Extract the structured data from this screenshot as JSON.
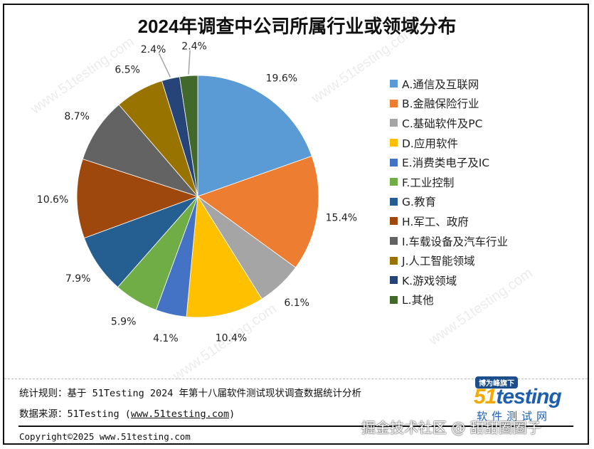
{
  "chart_data": {
    "type": "pie",
    "title": "2024年调查中公司所属行业或领域分布",
    "unit": "%",
    "start_angle": "12 o'clock",
    "direction": "clockwise",
    "legend_position": "right",
    "slices": [
      {
        "label": "A.通信及互联网",
        "value": 19.6,
        "display": "19.6%",
        "color": "#5B9BD5"
      },
      {
        "label": "B.金融保险行业",
        "value": 15.4,
        "display": "15.4%",
        "color": "#ED7D31"
      },
      {
        "label": "C.基础软件及PC",
        "value": 6.1,
        "display": "6.1%",
        "color": "#A5A5A5"
      },
      {
        "label": "D.应用软件",
        "value": 10.4,
        "display": "10.4%",
        "color": "#FFC000"
      },
      {
        "label": "E.消费类电子及IC",
        "value": 4.1,
        "display": "4.1%",
        "color": "#4472C4"
      },
      {
        "label": "F.工业控制",
        "value": 5.9,
        "display": "5.9%",
        "color": "#70AD47"
      },
      {
        "label": "G.教育",
        "value": 7.9,
        "display": "7.9%",
        "color": "#255E91"
      },
      {
        "label": "H.军工、政府",
        "value": 10.6,
        "display": "10.6%",
        "color": "#9E480E"
      },
      {
        "label": "I.车载设备及汽车行业",
        "value": 8.7,
        "display": "8.7%",
        "color": "#636363"
      },
      {
        "label": "J.人工智能领域",
        "value": 6.5,
        "display": "6.5%",
        "color": "#997300"
      },
      {
        "label": "K.游戏领域",
        "value": 2.4,
        "display": "2.4%",
        "color": "#264478"
      },
      {
        "label": "L.其他",
        "value": 2.4,
        "display": "2.4%",
        "color": "#43682B"
      }
    ]
  },
  "footer": {
    "rule_text": "统计规则：基于 51Testing 2024 年第十八届软件测试现状调查数据统计分析",
    "source_prefix": "数据来源：51Testing (",
    "source_link": "www.51testing.com",
    "source_suffix": ")",
    "copyright": "Copyright©2025 www.51testing.com"
  },
  "logo": {
    "badge": "博为峰旗下",
    "brand_num": "51",
    "brand_text": "testing",
    "subtitle": "软件测试网"
  },
  "watermark_text": "www.51testing.com",
  "overlay_credit": "掘金技术社区 @ 甜甜圈圈子"
}
